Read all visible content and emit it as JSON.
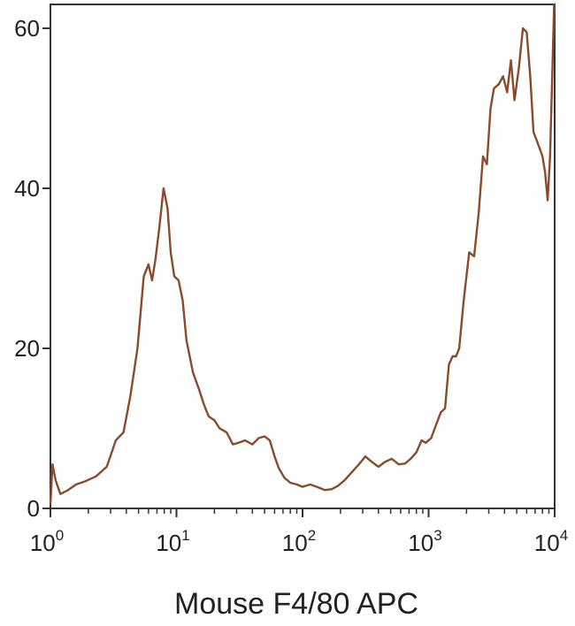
{
  "chart_data": {
    "type": "line",
    "title": "",
    "xlabel": "Mouse F4/80  APC",
    "ylabel": "",
    "x_scale": "log",
    "xlim": [
      1,
      10000
    ],
    "ylim": [
      0,
      63
    ],
    "grid": false,
    "legend": "none",
    "line_color": "#8a4a2c",
    "x_ticks": [
      {
        "base": "10",
        "exp": "0",
        "value": 1
      },
      {
        "base": "10",
        "exp": "1",
        "value": 10
      },
      {
        "base": "10",
        "exp": "2",
        "value": 100
      },
      {
        "base": "10",
        "exp": "3",
        "value": 1000
      },
      {
        "base": "10",
        "exp": "4",
        "value": 10000
      }
    ],
    "y_ticks": [
      "0",
      "20",
      "40",
      "60"
    ],
    "y_tick_values": [
      0,
      20,
      40,
      60
    ],
    "series": [
      {
        "x": [
          1.0,
          1.04,
          1.1,
          1.2,
          1.35,
          1.6,
          1.9,
          2.3,
          2.8,
          3.3,
          3.8,
          4.3,
          4.9,
          5.5,
          6.0,
          6.4,
          6.8,
          7.3,
          7.9,
          8.5,
          9.0,
          9.6,
          10.4,
          11.2,
          12.0,
          13.5,
          15.0,
          16.5,
          18.0,
          20.0,
          22.0,
          25.0,
          28.0,
          31.0,
          35.0,
          40.0,
          45.0,
          50.0,
          55.0,
          60.0,
          65.0,
          72.0,
          80.0,
          90.0,
          100.0,
          115.0,
          130.0,
          150.0,
          170.0,
          190.0,
          215.0,
          245.0,
          280.0,
          315.0,
          355.0,
          400.0,
          450.0,
          510.0,
          580.0,
          650.0,
          720.0,
          800.0,
          880.0,
          950.0,
          1050.0,
          1150.0,
          1250.0,
          1350.0,
          1450.0,
          1550.0,
          1650.0,
          1750.0,
          1900.0,
          2100.0,
          2300.0,
          2500.0,
          2700.0,
          2900.0,
          3100.0,
          3300.0,
          3600.0,
          3900.0,
          4200.0,
          4500.0,
          4800.0,
          5200.0,
          5600.0,
          6000.0,
          6400.0,
          6800.0,
          7200.0,
          7600.0,
          8000.0,
          8400.0,
          8800.0,
          9200.0,
          9600.0,
          9900.0
        ],
        "values": [
          0.5,
          5.5,
          3.5,
          1.8,
          2.2,
          3.0,
          3.4,
          4.0,
          5.2,
          8.5,
          9.5,
          14.0,
          20.0,
          29.0,
          30.5,
          28.5,
          31.0,
          35.0,
          40.0,
          37.5,
          32.0,
          29.0,
          28.5,
          26.0,
          21.0,
          17.0,
          15.0,
          13.0,
          11.5,
          11.0,
          10.0,
          9.5,
          8.0,
          8.2,
          8.5,
          8.0,
          8.8,
          9.0,
          8.5,
          6.5,
          5.0,
          3.8,
          3.2,
          3.0,
          2.7,
          3.0,
          2.7,
          2.3,
          2.4,
          2.8,
          3.5,
          4.5,
          5.5,
          6.5,
          5.8,
          5.2,
          5.8,
          6.2,
          5.5,
          5.6,
          6.2,
          7.0,
          8.5,
          8.2,
          8.8,
          10.5,
          12.0,
          12.5,
          18.0,
          19.0,
          19.0,
          20.0,
          26.0,
          32.0,
          31.5,
          37.0,
          44.0,
          43.0,
          50.0,
          52.5,
          53.0,
          54.0,
          52.0,
          56.0,
          51.0,
          55.0,
          60.0,
          59.5,
          54.0,
          47.0,
          46.0,
          45.0,
          44.0,
          42.0,
          38.5,
          44.0,
          55.0,
          63.0
        ]
      }
    ]
  }
}
